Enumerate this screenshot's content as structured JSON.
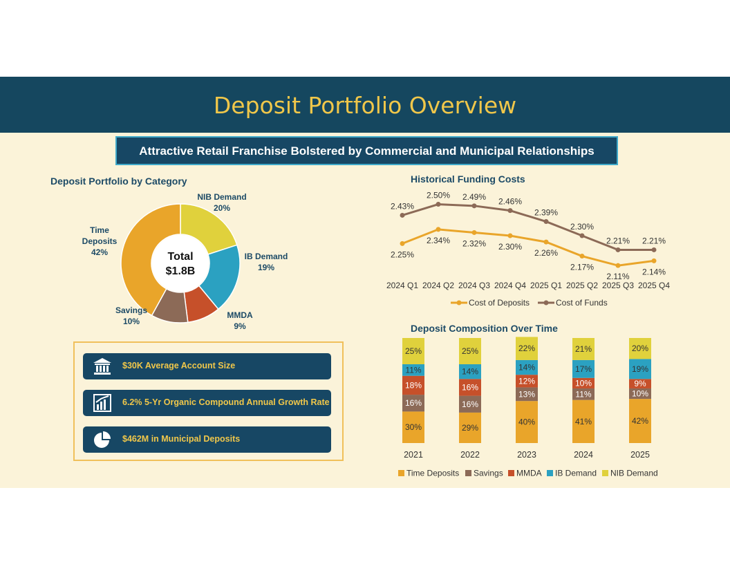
{
  "header": {
    "title": "Deposit Portfolio Overview"
  },
  "subtitle": "Attractive Retail Franchise Bolstered by Commercial and Municipal Relationships",
  "colors": {
    "banner": "#15475f",
    "accent": "#f0c74a",
    "background": "#fbf3d9",
    "time_deposits": "#e9a52a",
    "savings": "#8c6a57",
    "mmda": "#c6502a",
    "ib_demand": "#2ba1c1",
    "nib_demand": "#e0d13c",
    "cost_of_deposits": "#e9a52a",
    "cost_of_funds": "#8c6a57"
  },
  "chart_data": [
    {
      "type": "pie",
      "title": "Deposit Portfolio by Category",
      "center_label": "Total",
      "center_value": "$1.8B",
      "slices": [
        {
          "name": "NIB Demand",
          "value": 20,
          "label": "20%"
        },
        {
          "name": "IB Demand",
          "value": 19,
          "label": "19%"
        },
        {
          "name": "MMDA",
          "value": 9,
          "label": "9%"
        },
        {
          "name": "Savings",
          "value": 10,
          "label": "10%"
        },
        {
          "name": "Time Deposits",
          "value": 42,
          "label": "42%"
        }
      ],
      "label_lines": {
        "time": [
          "Time",
          "Deposits",
          "42%"
        ],
        "nib": [
          "NIB Demand",
          "20%"
        ],
        "ib": [
          "IB Demand",
          "19%"
        ],
        "mmda": [
          "MMDA",
          "9%"
        ],
        "savings": [
          "Savings",
          "10%"
        ]
      }
    },
    {
      "type": "line",
      "title": "Historical Funding Costs",
      "categories": [
        "2024 Q1",
        "2024 Q2",
        "2024 Q3",
        "2024 Q4",
        "2025 Q1",
        "2025 Q2",
        "2025 Q3",
        "2025 Q4"
      ],
      "series": [
        {
          "name": "Cost of Deposits",
          "values": [
            2.25,
            2.34,
            2.32,
            2.3,
            2.26,
            2.17,
            2.11,
            2.14
          ],
          "labels": [
            "2.25%",
            "2.34%",
            "2.32%",
            "2.30%",
            "2.26%",
            "2.17%",
            "2.11%",
            "2.14%"
          ]
        },
        {
          "name": "Cost of Funds",
          "values": [
            2.43,
            2.5,
            2.49,
            2.46,
            2.39,
            2.3,
            2.21,
            2.21
          ],
          "labels": [
            "2.43%",
            "2.50%",
            "2.49%",
            "2.46%",
            "2.39%",
            "2.30%",
            "2.21%",
            "2.21%"
          ]
        }
      ],
      "ylim": [
        2.0,
        2.55
      ],
      "legend": "bottom"
    },
    {
      "type": "bar",
      "stacked": true,
      "title": "Deposit Composition Over Time",
      "categories": [
        "2021",
        "2022",
        "2023",
        "2024",
        "2025"
      ],
      "series": [
        {
          "name": "Time Deposits",
          "values": [
            30,
            29,
            40,
            41,
            42
          ]
        },
        {
          "name": "Savings",
          "values": [
            16,
            16,
            13,
            11,
            10
          ]
        },
        {
          "name": "MMDA",
          "values": [
            18,
            16,
            12,
            10,
            9
          ]
        },
        {
          "name": "IB Demand",
          "values": [
            11,
            14,
            14,
            17,
            19
          ]
        },
        {
          "name": "NIB Demand",
          "values": [
            25,
            25,
            22,
            21,
            20
          ]
        }
      ],
      "legend": "bottom"
    }
  ],
  "kpis": [
    {
      "icon": "bank-icon",
      "text": "$30K Average Account Size"
    },
    {
      "icon": "growth-chart-icon",
      "text": "6.2% 5-Yr Organic Compound Annual Growth Rate"
    },
    {
      "icon": "pie-chart-icon",
      "text": "$462M in Municipal Deposits"
    }
  ]
}
